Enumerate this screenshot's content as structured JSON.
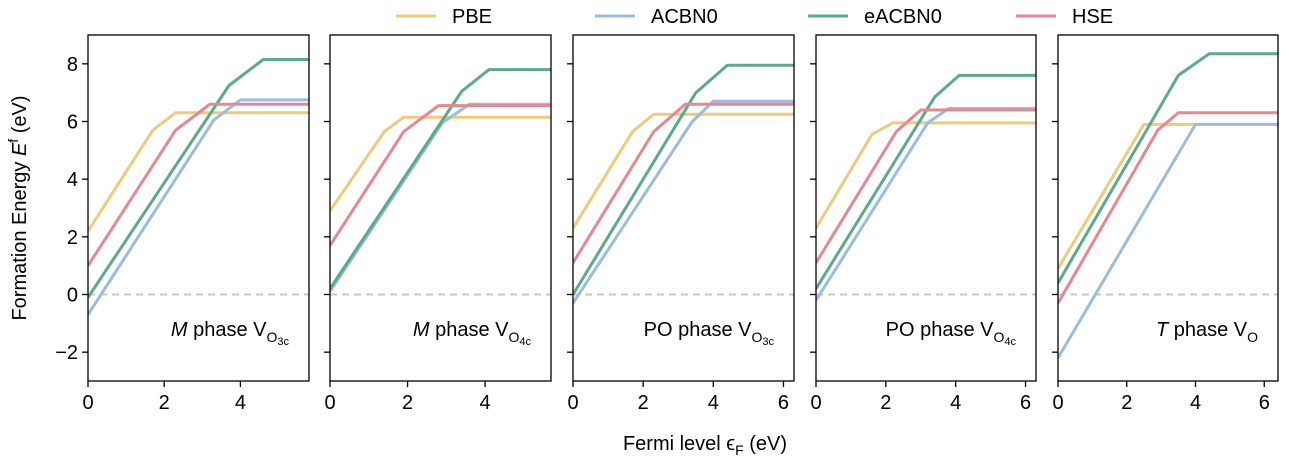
{
  "chart_data": {
    "type": "line",
    "ylabel_main": "Formation Energy ",
    "ylabel_symbol": "E",
    "ylabel_sup": "f",
    "ylabel_unit": " (eV)",
    "xlabel_main": "Fermi level ",
    "xlabel_symbol": "ϵ",
    "xlabel_sub": "F",
    "xlabel_unit": " (eV)",
    "ylim": [
      -3,
      9
    ],
    "yticks": [
      -2,
      0,
      2,
      4,
      6,
      8
    ],
    "ytick_labels": [
      "−2",
      "0",
      "2",
      "4",
      "6",
      "8"
    ],
    "reference_line": {
      "y": 0,
      "style": "dashed",
      "color": "#c8c8c8"
    },
    "legend": {
      "placement": "top",
      "entries": [
        {
          "name": "PBE",
          "color": "#eccb7a"
        },
        {
          "name": "ACBN0",
          "color": "#9bbcdf"
        },
        {
          "name": "eACBN0",
          "color": "#5aab8a"
        },
        {
          "name": "HSE",
          "color": "#e8878f"
        }
      ]
    },
    "panels": [
      {
        "label": {
          "italic": "M",
          "text": " phase V",
          "sub": "O",
          "subsub": "3c"
        },
        "xlim": [
          0,
          5.8
        ],
        "xticks": [
          0,
          2,
          4
        ],
        "series": [
          {
            "name": "PBE",
            "x": [
              0,
              1.7,
              2.3,
              5.8
            ],
            "y": [
              2.2,
              5.7,
              6.3,
              6.3
            ]
          },
          {
            "name": "ACBN0",
            "x": [
              0,
              3.3,
              4.0,
              5.8
            ],
            "y": [
              -0.7,
              6.05,
              6.75,
              6.75
            ]
          },
          {
            "name": "eACBN0",
            "x": [
              0,
              3.7,
              4.6,
              5.8
            ],
            "y": [
              -0.1,
              7.25,
              8.15,
              8.15
            ]
          },
          {
            "name": "HSE",
            "x": [
              0,
              2.3,
              3.2,
              5.8
            ],
            "y": [
              1.0,
              5.7,
              6.6,
              6.6
            ]
          }
        ]
      },
      {
        "label": {
          "italic": "M",
          "text": " phase V",
          "sub": "O",
          "subsub": "4c"
        },
        "xlim": [
          0,
          5.7
        ],
        "xticks": [
          0,
          2,
          4
        ],
        "series": [
          {
            "name": "PBE",
            "x": [
              0,
              1.4,
              1.9,
              5.7
            ],
            "y": [
              2.9,
              5.65,
              6.15,
              6.15
            ]
          },
          {
            "name": "ACBN0",
            "x": [
              0,
              2.9,
              3.6,
              5.7
            ],
            "y": [
              0.1,
              5.95,
              6.6,
              6.6
            ]
          },
          {
            "name": "eACBN0",
            "x": [
              0,
              3.4,
              4.1,
              5.7
            ],
            "y": [
              0.2,
              7.05,
              7.8,
              7.8
            ]
          },
          {
            "name": "HSE",
            "x": [
              0,
              1.9,
              2.8,
              5.7
            ],
            "y": [
              1.7,
              5.65,
              6.55,
              6.55
            ]
          }
        ]
      },
      {
        "label": {
          "italic": "",
          "text": "PO phase V",
          "sub": "O",
          "subsub": "3c"
        },
        "xlim": [
          0,
          6.3
        ],
        "xticks": [
          0,
          2,
          4,
          6
        ],
        "series": [
          {
            "name": "PBE",
            "x": [
              0,
              1.7,
              2.3,
              6.3
            ],
            "y": [
              2.3,
              5.65,
              6.25,
              6.25
            ]
          },
          {
            "name": "ACBN0",
            "x": [
              0,
              3.4,
              4.0,
              6.3
            ],
            "y": [
              -0.3,
              6.0,
              6.7,
              6.7
            ]
          },
          {
            "name": "eACBN0",
            "x": [
              0,
              3.5,
              4.4,
              6.3
            ],
            "y": [
              0.0,
              7.0,
              7.95,
              7.95
            ]
          },
          {
            "name": "HSE",
            "x": [
              0,
              2.3,
              3.2,
              6.3
            ],
            "y": [
              1.1,
              5.65,
              6.6,
              6.6
            ]
          }
        ]
      },
      {
        "label": {
          "italic": "",
          "text": "PO phase V",
          "sub": "O",
          "subsub": "4c"
        },
        "xlim": [
          0,
          6.3
        ],
        "xticks": [
          0,
          2,
          4,
          6
        ],
        "series": [
          {
            "name": "PBE",
            "x": [
              0,
              1.6,
              2.2,
              6.3
            ],
            "y": [
              2.3,
              5.55,
              5.95,
              5.95
            ]
          },
          {
            "name": "ACBN0",
            "x": [
              0,
              3.2,
              3.8,
              6.3
            ],
            "y": [
              -0.2,
              5.95,
              6.45,
              6.45
            ]
          },
          {
            "name": "eACBN0",
            "x": [
              0,
              3.4,
              4.1,
              6.3
            ],
            "y": [
              0.2,
              6.85,
              7.6,
              7.6
            ]
          },
          {
            "name": "HSE",
            "x": [
              0,
              2.3,
              3.0,
              6.3
            ],
            "y": [
              1.1,
              5.65,
              6.4,
              6.4
            ]
          }
        ]
      },
      {
        "label": {
          "italic": "T",
          "text": " phase V",
          "sub": "O",
          "subsub": ""
        },
        "xlim": [
          0,
          6.4
        ],
        "xticks": [
          0,
          2,
          4,
          6
        ],
        "series": [
          {
            "name": "PBE",
            "x": [
              0,
              2.5,
              4.0,
              6.4
            ],
            "y": [
              0.9,
              5.9,
              5.9,
              5.9
            ]
          },
          {
            "name": "ACBN0",
            "x": [
              0,
              4.0,
              6.4
            ],
            "y": [
              -2.2,
              5.9,
              5.9
            ]
          },
          {
            "name": "eACBN0",
            "x": [
              0,
              3.5,
              4.4,
              6.4
            ],
            "y": [
              0.4,
              7.6,
              8.35,
              8.35
            ]
          },
          {
            "name": "HSE",
            "x": [
              0,
              2.9,
              3.5,
              6.4
            ],
            "y": [
              -0.3,
              5.7,
              6.3,
              6.3
            ]
          }
        ]
      }
    ]
  }
}
